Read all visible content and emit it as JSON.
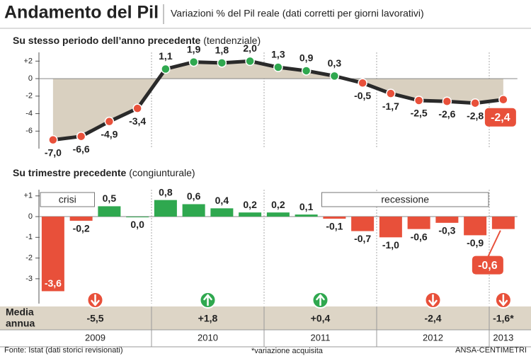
{
  "title": "Andamento del Pil",
  "subtitle": "Variazioni % del Pil reale (dati corretti per giorni lavorativi)",
  "chart_data": [
    {
      "type": "line",
      "title": "Su stesso periodo dell’anno precedente",
      "subtitle": "(tendenziale)",
      "values": [
        -7.0,
        -6.6,
        -4.9,
        -3.4,
        1.1,
        1.9,
        1.8,
        2.0,
        1.3,
        0.9,
        0.3,
        -0.5,
        -1.7,
        -2.5,
        -2.6,
        -2.8,
        -2.4
      ],
      "value_labels": [
        "-7,0",
        "-6,6",
        "-4,9",
        "-3,4",
        "1,1",
        "1,9",
        "1,8",
        "2,0",
        "1,3",
        "0,9",
        "0,3",
        "-0,5",
        "-1,7",
        "-2,5",
        "-2,6",
        "-2,8",
        "-2,4"
      ],
      "color": "#2a2a2a",
      "positive_color": "#2fa84f",
      "negative_color": "#e8503a",
      "area_color": "#d9d0c0",
      "ylim": [
        -8,
        3
      ],
      "yticks": [
        {
          "value": 2,
          "label": "+2"
        },
        0,
        -2,
        -4,
        -6
      ],
      "highlight_last": true
    },
    {
      "type": "bar",
      "title": "Su trimestre precedente",
      "subtitle": "(congiunturale)",
      "values": [
        -3.6,
        -0.2,
        0.5,
        0.0,
        0.8,
        0.6,
        0.4,
        0.2,
        0.2,
        0.1,
        -0.1,
        -0.7,
        -1.0,
        -0.6,
        -0.3,
        -0.9,
        -0.6
      ],
      "value_labels": [
        "-3,6",
        "-0,2",
        "0,5",
        "0,0",
        "0,8",
        "0,6",
        "0,4",
        "0,2",
        "0,2",
        "0,1",
        "-0,1",
        "-0,7",
        "-1,0",
        "-0,6",
        "-0,3",
        "-0,9",
        "-0,6"
      ],
      "positive_color": "#2fa84f",
      "negative_color": "#e8503a",
      "ylim": [
        -4.2,
        1.3
      ],
      "yticks": [
        {
          "value": 1,
          "label": "+1"
        },
        0,
        -1,
        -2,
        -3
      ],
      "annotations": [
        "crisi",
        "recessione"
      ],
      "highlight_last": true
    }
  ],
  "annual": {
    "label_lines": [
      "Media",
      "annua"
    ],
    "years": [
      "2009",
      "2010",
      "2011",
      "2012",
      "2013"
    ],
    "values": [
      -5.5,
      1.8,
      0.4,
      -2.4,
      -1.6
    ],
    "value_labels": [
      "-5,5",
      "+1,8",
      "+0,4",
      "-2,4",
      "-1,6*"
    ],
    "up_color": "#2fa84f",
    "down_color": "#e8503a"
  },
  "source": "Fonte: Istat (dati storici revisionati)",
  "note": "*variazione acquisita",
  "credit": "ANSA-CENTIMETRI"
}
